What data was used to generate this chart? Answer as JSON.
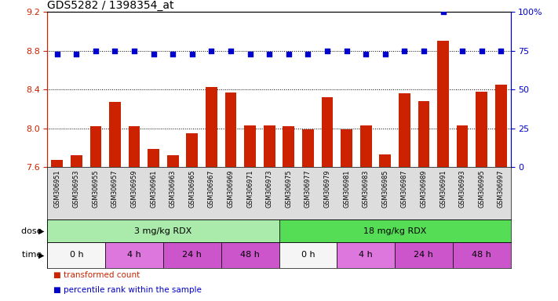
{
  "title": "GDS5282 / 1398354_at",
  "samples": [
    "GSM306951",
    "GSM306953",
    "GSM306955",
    "GSM306957",
    "GSM306959",
    "GSM306961",
    "GSM306963",
    "GSM306965",
    "GSM306967",
    "GSM306969",
    "GSM306971",
    "GSM306973",
    "GSM306975",
    "GSM306977",
    "GSM306979",
    "GSM306981",
    "GSM306983",
    "GSM306985",
    "GSM306987",
    "GSM306989",
    "GSM306991",
    "GSM306993",
    "GSM306995",
    "GSM306997"
  ],
  "bar_values": [
    7.67,
    7.72,
    8.02,
    8.27,
    8.02,
    7.79,
    7.72,
    7.95,
    8.43,
    8.37,
    8.03,
    8.03,
    8.02,
    7.99,
    8.32,
    7.99,
    8.03,
    7.73,
    8.36,
    8.28,
    8.9,
    8.03,
    8.38,
    8.45
  ],
  "percentile_values": [
    73,
    73,
    75,
    75,
    75,
    73,
    73,
    73,
    75,
    75,
    73,
    73,
    73,
    73,
    75,
    75,
    73,
    73,
    75,
    75,
    100,
    75,
    75,
    75
  ],
  "bar_color": "#cc2200",
  "percentile_color": "#0000cc",
  "ylim_left": [
    7.6,
    9.2
  ],
  "ylim_right": [
    0,
    100
  ],
  "yticks_left": [
    7.6,
    8.0,
    8.4,
    8.8,
    9.2
  ],
  "yticks_right": [
    0,
    25,
    50,
    75,
    100
  ],
  "dose_groups": [
    {
      "label": "3 mg/kg RDX",
      "start": 0,
      "end": 12,
      "color": "#aaeaaa"
    },
    {
      "label": "18 mg/kg RDX",
      "start": 12,
      "end": 24,
      "color": "#55dd55"
    }
  ],
  "time_groups": [
    {
      "label": "0 h",
      "start": 0,
      "end": 3,
      "color": "#f5f5f5"
    },
    {
      "label": "4 h",
      "start": 3,
      "end": 6,
      "color": "#dd77dd"
    },
    {
      "label": "24 h",
      "start": 6,
      "end": 9,
      "color": "#cc55cc"
    },
    {
      "label": "48 h",
      "start": 9,
      "end": 12,
      "color": "#cc55cc"
    },
    {
      "label": "0 h",
      "start": 12,
      "end": 15,
      "color": "#f5f5f5"
    },
    {
      "label": "4 h",
      "start": 15,
      "end": 18,
      "color": "#dd77dd"
    },
    {
      "label": "24 h",
      "start": 18,
      "end": 21,
      "color": "#cc55cc"
    },
    {
      "label": "48 h",
      "start": 21,
      "end": 24,
      "color": "#cc55cc"
    }
  ],
  "legend_items": [
    {
      "label": "transformed count",
      "color": "#cc2200"
    },
    {
      "label": "percentile rank within the sample",
      "color": "#0000cc"
    }
  ],
  "xtick_bg": "#dddddd",
  "background_color": "#ffffff"
}
